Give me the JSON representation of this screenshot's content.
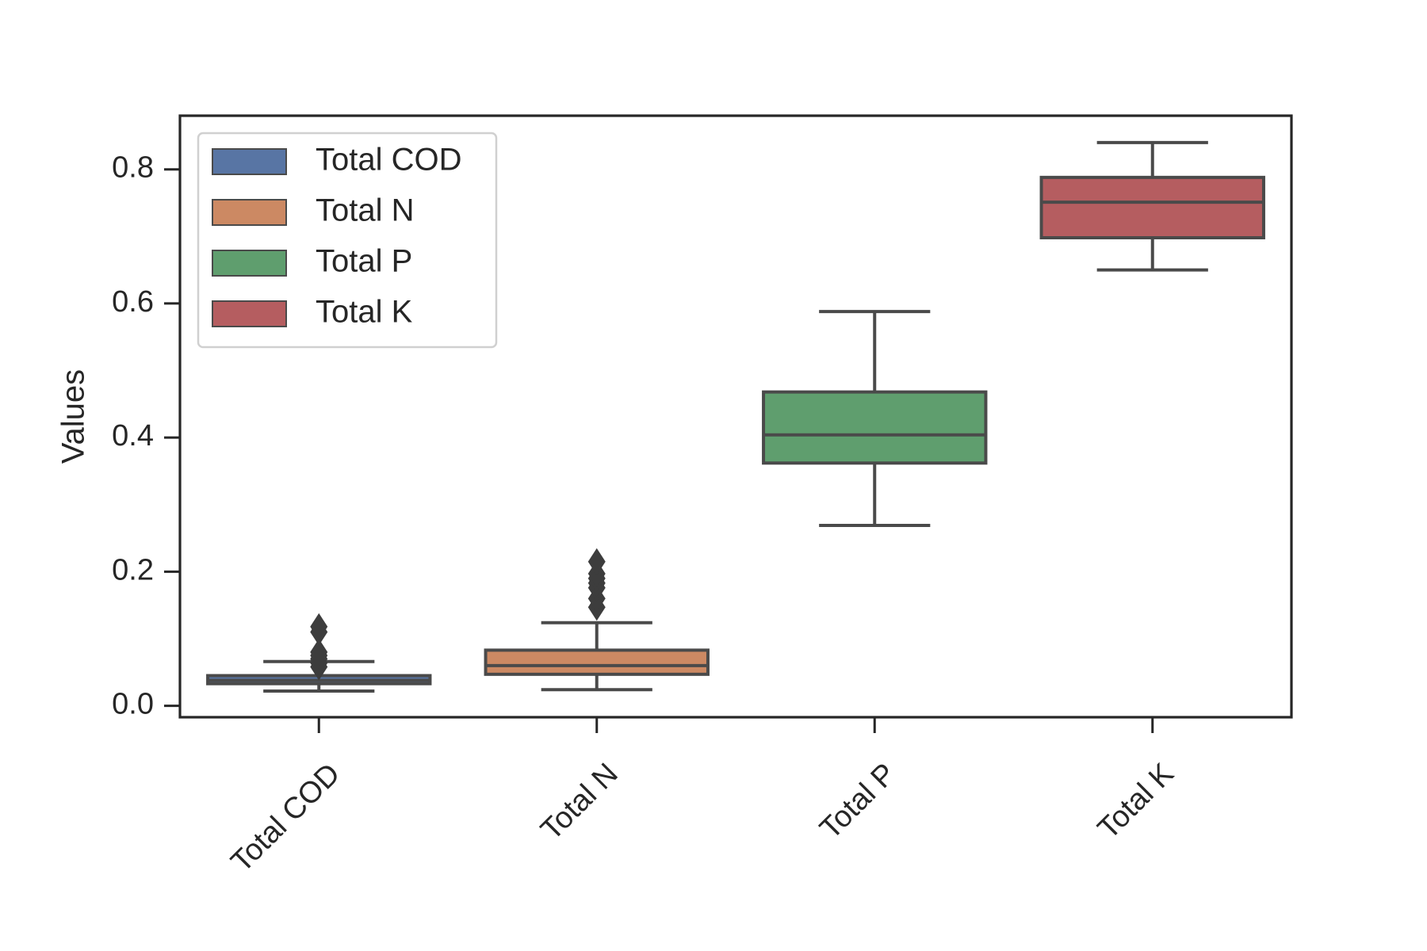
{
  "chart_data": {
    "type": "box",
    "ylabel": "Values",
    "ylim": [
      -0.017,
      0.88
    ],
    "yticks": [
      0.0,
      0.2,
      0.4,
      0.6,
      0.8
    ],
    "ytick_labels": [
      "0.0",
      "0.2",
      "0.4",
      "0.6",
      "0.8"
    ],
    "categories": [
      "Total COD",
      "Total N",
      "Total P",
      "Total K"
    ],
    "legend": {
      "placement": "top-left",
      "entries": [
        "Total COD",
        "Total N",
        "Total P",
        "Total K"
      ]
    },
    "grid": false,
    "series": [
      {
        "name": "Total COD",
        "color": "#5875a4",
        "whisker_low": 0.022,
        "q1": 0.033,
        "median": 0.038,
        "q3": 0.045,
        "whisker_high": 0.066,
        "outliers": [
          0.058,
          0.064,
          0.07,
          0.075,
          0.08,
          0.11,
          0.118
        ]
      },
      {
        "name": "Total N",
        "color": "#cc8963",
        "whisker_low": 0.024,
        "q1": 0.047,
        "median": 0.06,
        "q3": 0.083,
        "whisker_high": 0.124,
        "outliers": [
          0.147,
          0.16,
          0.176,
          0.183,
          0.19,
          0.197,
          0.215
        ]
      },
      {
        "name": "Total P",
        "color": "#5f9e6e",
        "whisker_low": 0.269,
        "q1": 0.362,
        "median": 0.404,
        "q3": 0.468,
        "whisker_high": 0.588,
        "outliers": []
      },
      {
        "name": "Total K",
        "color": "#b55d60",
        "whisker_low": 0.65,
        "q1": 0.698,
        "median": 0.751,
        "q3": 0.788,
        "whisker_high": 0.84,
        "outliers": []
      }
    ]
  }
}
